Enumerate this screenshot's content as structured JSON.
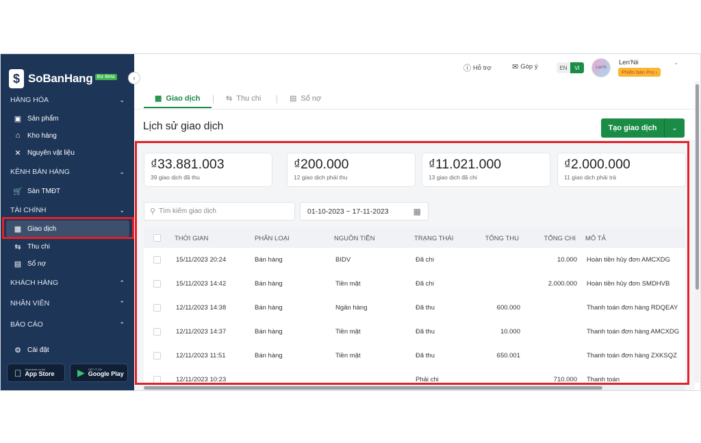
{
  "app": {
    "logo_text": "SoBanHang",
    "logo_badge": "Biz Beta"
  },
  "sidebar": {
    "sections": [
      {
        "label": "HÀNG HÓA",
        "expanded": true
      },
      {
        "label": "KÊNH BÁN HÀNG",
        "expanded": true
      },
      {
        "label": "TÀI CHÍNH",
        "expanded": true
      },
      {
        "label": "KHÁCH HÀNG",
        "expanded": false
      },
      {
        "label": "NHÂN VIÊN",
        "expanded": false
      },
      {
        "label": "BÁO CÁO",
        "expanded": false
      }
    ],
    "items": [
      {
        "label": "Sản phẩm",
        "icon": "product-box-icon"
      },
      {
        "label": "Kho hàng",
        "icon": "warehouse-icon"
      },
      {
        "label": "Nguyên vật liệu",
        "icon": "tools-icon"
      },
      {
        "label": "Sàn TMĐT",
        "icon": "cart-icon"
      },
      {
        "label": "Giao dịch",
        "icon": "cash-icon",
        "active": true
      },
      {
        "label": "Thu chi",
        "icon": "swap-arrows-icon"
      },
      {
        "label": "Sổ nợ",
        "icon": "ledger-book-icon"
      }
    ],
    "settings_label": "Cài đặt",
    "app_store": {
      "small": "Download on the",
      "big": "App Store"
    },
    "google_play": {
      "small": "GET IT ON",
      "big": "Google Play"
    }
  },
  "topbar": {
    "support_label": "Hỗ trợ",
    "feedback_label": "Góp ý",
    "lang_en": "EN",
    "lang_vi": "VI",
    "username": "Len'Nii",
    "pro_badge": "Phiên bản Pro ›",
    "avatar_text": "Len'N"
  },
  "tabs": [
    {
      "label": "Giao dịch",
      "active": true
    },
    {
      "label": "Thu chi",
      "active": false
    },
    {
      "label": "Sổ nợ",
      "active": false
    }
  ],
  "page": {
    "title": "Lịch sử giao dịch",
    "create_button": "Tạo giao dịch"
  },
  "stats": [
    {
      "amount": "₫33.881.003",
      "label": "39 giao dịch đã thu"
    },
    {
      "amount": "₫200.000",
      "label": "12 giao dịch phải thu"
    },
    {
      "amount": "₫11.021.000",
      "label": "13 giao dịch đã chi"
    },
    {
      "amount": "₫2.000.000",
      "label": "11 giao dịch phải trả"
    }
  ],
  "filters": {
    "search_placeholder": "Tìm kiếm giao dịch",
    "date_range": "01-10-2023 ~ 17-11-2023"
  },
  "table": {
    "columns": [
      "THỜI GIAN",
      "PHÂN LOẠI",
      "NGUỒN TIỀN",
      "TRẠNG THÁI",
      "TỔNG THU",
      "TỔNG CHI",
      "MÔ TẢ"
    ],
    "rows": [
      {
        "time": "15/11/2023 20:24",
        "type": "Bán hàng",
        "source": "BIDV",
        "status": "Đã chi",
        "income": "",
        "expense": "10.000",
        "desc": "Hoàn tiền hủy đơn AMCXDG"
      },
      {
        "time": "15/11/2023 14:42",
        "type": "Bán hàng",
        "source": "Tiền mặt",
        "status": "Đã chi",
        "income": "",
        "expense": "2.000.000",
        "desc": "Hoàn tiền hủy đơn SMDHVB"
      },
      {
        "time": "12/11/2023 14:38",
        "type": "Bán hàng",
        "source": "Ngân hàng",
        "status": "Đã thu",
        "income": "600.000",
        "expense": "",
        "desc": "Thanh toán đơn hàng RDQEAY"
      },
      {
        "time": "12/11/2023 14:37",
        "type": "Bán hàng",
        "source": "Tiền mặt",
        "status": "Đã thu",
        "income": "10.000",
        "expense": "",
        "desc": "Thanh toán đơn hàng AMCXDG"
      },
      {
        "time": "12/11/2023 11:51",
        "type": "Bán hàng",
        "source": "Tiền mặt",
        "status": "Đã thu",
        "income": "650.001",
        "expense": "",
        "desc": "Thanh toán đơn hàng ZXKSQZ"
      },
      {
        "time": "12/11/2023 10:23",
        "type": "",
        "source": "",
        "status": "Phải chi",
        "income": "",
        "expense": "710.000",
        "desc": "Thanh toán"
      }
    ]
  },
  "colors": {
    "sidebar_bg": "#1d3557",
    "accent_green": "#1a8c45",
    "highlight_red": "#e32027",
    "pro_badge_bg": "#f6b731"
  }
}
